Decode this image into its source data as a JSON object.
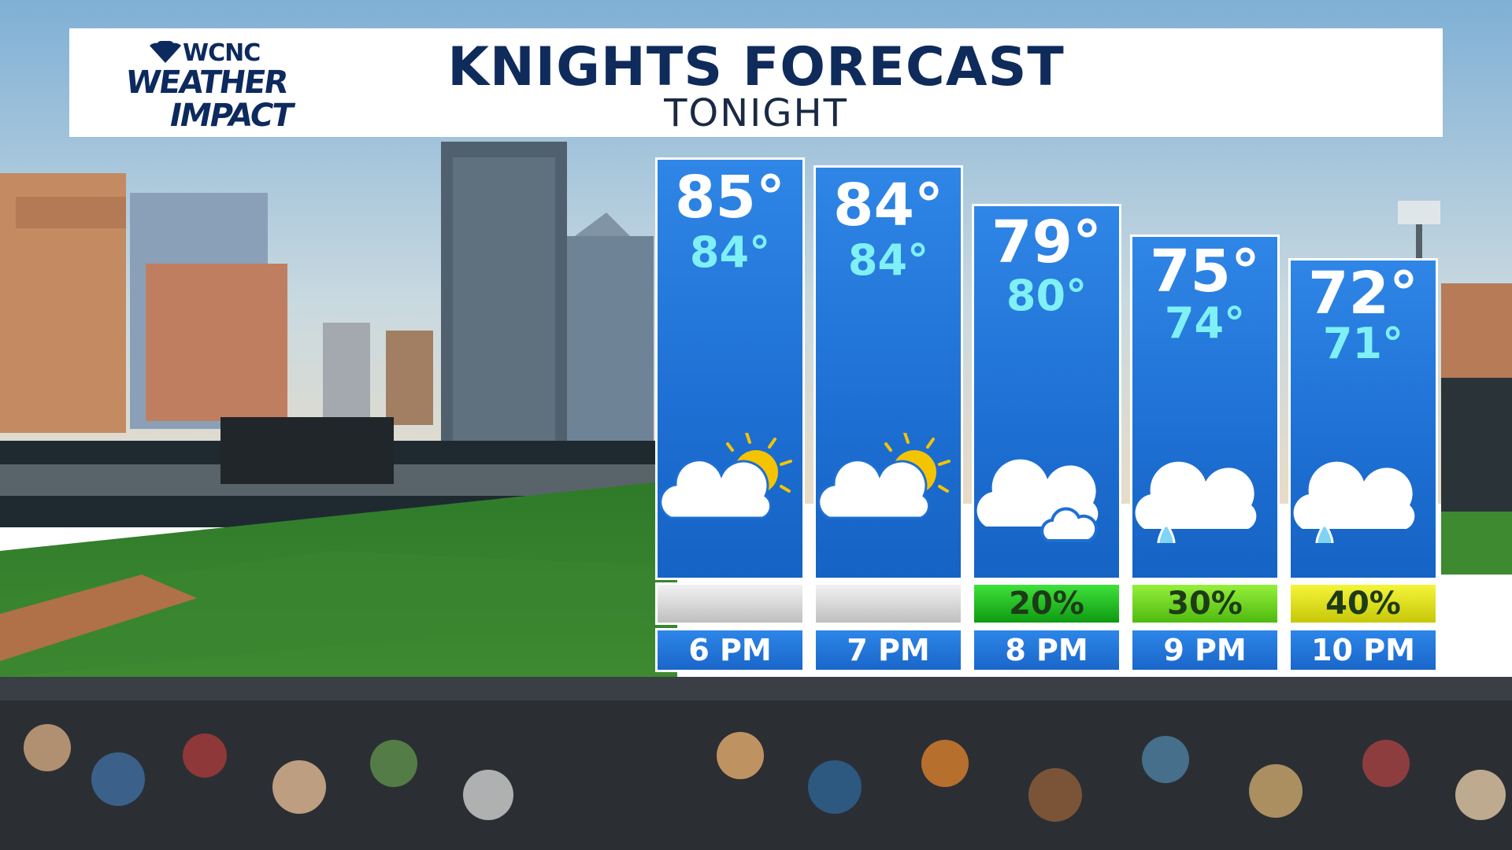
{
  "header": {
    "logo_station": "WCNC",
    "logo_line1": "WEATHER",
    "logo_line2": "IMPACT",
    "title": "KNIGHTS FORECAST",
    "subtitle": "TONIGHT"
  },
  "forecast": [
    {
      "time": "6 PM",
      "temp": "85°",
      "feels_like": "84°",
      "icon": "partly-sunny-icon",
      "precip": "",
      "precip_color": "#d9d9d9"
    },
    {
      "time": "7 PM",
      "temp": "84°",
      "feels_like": "84°",
      "icon": "partly-sunny-icon",
      "precip": "",
      "precip_color": "#d9d9d9"
    },
    {
      "time": "8 PM",
      "temp": "79°",
      "feels_like": "80°",
      "icon": "cloudy-icon",
      "precip": "20%",
      "precip_color": "#22c21e"
    },
    {
      "time": "9 PM",
      "temp": "75°",
      "feels_like": "74°",
      "icon": "rain-icon",
      "precip": "30%",
      "precip_color": "#6fd81a"
    },
    {
      "time": "10 PM",
      "temp": "72°",
      "feels_like": "71°",
      "icon": "rain-icon",
      "precip": "40%",
      "precip_color": "#e6e61a"
    }
  ],
  "colors": {
    "title": "#0f2b5c",
    "panel": "#1e6fd3",
    "feels_like": "#7ff0f5"
  }
}
